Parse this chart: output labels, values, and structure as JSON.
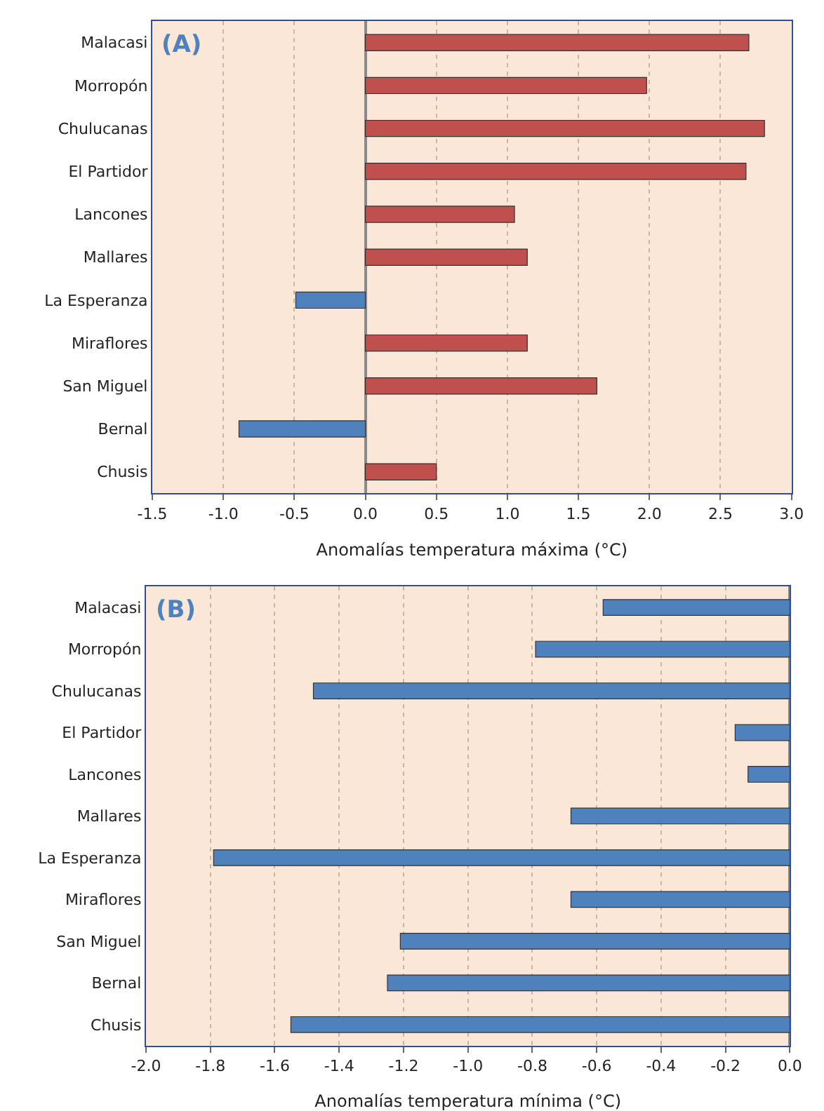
{
  "chart_data": [
    {
      "type": "bar",
      "orientation": "horizontal",
      "title": "(A)",
      "xlabel": "Anomalías temperatura máxima (°C)",
      "categories": [
        "Malacasi",
        "Morropón",
        "Chulucanas",
        "El Partidor",
        "Lancones",
        "Mallares",
        "La Esperanza",
        "Miraflores",
        "San Miguel",
        "Bernal",
        "Chusis"
      ],
      "values": [
        2.7,
        1.98,
        2.81,
        2.68,
        1.05,
        1.14,
        -0.49,
        1.14,
        1.63,
        -0.89,
        0.5
      ],
      "colors": [
        "#c0504d",
        "#c0504d",
        "#c0504d",
        "#c0504d",
        "#c0504d",
        "#c0504d",
        "#4f81bd",
        "#c0504d",
        "#c0504d",
        "#4f81bd",
        "#c0504d"
      ],
      "xlim": [
        -1.5,
        3.0
      ],
      "xticks": [
        -1.5,
        {
          "value": -1.0,
          "label": "-1.0"
        },
        -0.5,
        {
          "value": 0,
          "label": "0.0"
        },
        0.5,
        {
          "value": 1,
          "label": "1.0"
        },
        1.5,
        {
          "value": 2,
          "label": "2.0"
        },
        2.5,
        {
          "value": 3,
          "label": "3.0"
        }
      ],
      "grid": "x"
    },
    {
      "type": "bar",
      "orientation": "horizontal",
      "title": "(B)",
      "xlabel": "Anomalías temperatura mínima (°C)",
      "categories": [
        "Malacasi",
        "Morropón",
        "Chulucanas",
        "El Partidor",
        "Lancones",
        "Mallares",
        "La Esperanza",
        "Miraflores",
        "San Miguel",
        "Bernal",
        "Chusis"
      ],
      "values": [
        -0.58,
        -0.79,
        -1.48,
        -0.17,
        -0.13,
        -0.68,
        -1.79,
        -0.68,
        -1.21,
        -1.25,
        -1.55
      ],
      "color": "#4f81bd",
      "xlim": [
        -2.0,
        0.0
      ],
      "xticks": [
        {
          "value": -2,
          "label": "-2.0"
        },
        -1.8,
        -1.6,
        -1.4,
        -1.2,
        {
          "value": -1,
          "label": "-1.0"
        },
        -0.8,
        -0.6,
        -0.4,
        -0.2,
        {
          "value": 0,
          "label": "0.0"
        }
      ],
      "grid": "x"
    }
  ]
}
